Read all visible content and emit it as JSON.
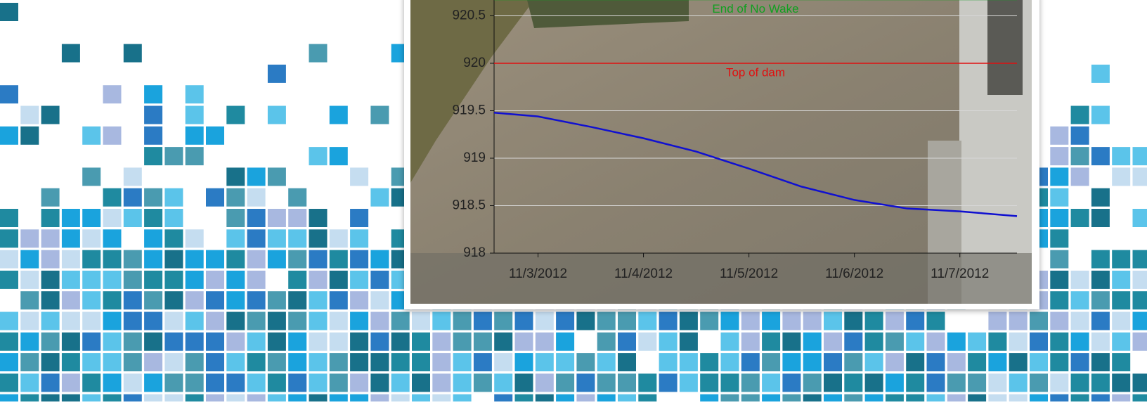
{
  "chart_data": {
    "type": "line",
    "x": [
      "2012-11-02T14:00",
      "2012-11-03T00:00",
      "2012-11-03T12:00",
      "2012-11-04T00:00",
      "2012-11-04T12:00",
      "2012-11-05T00:00",
      "2012-11-05T12:00",
      "2012-11-06T00:00",
      "2012-11-06T12:00",
      "2012-11-07T00:00",
      "2012-11-07T13:00"
    ],
    "series": [
      {
        "color": "#1010d0",
        "values": [
          919.48,
          919.44,
          919.33,
          919.21,
          919.07,
          918.89,
          918.7,
          918.56,
          918.47,
          918.44,
          918.39
        ]
      }
    ],
    "xlim": [
      "2012-11-02T14:00",
      "2012-11-07T13:00"
    ],
    "xticks": [
      {
        "value": "2012-11-03T00:00",
        "label": "11/3/2012"
      },
      {
        "value": "2012-11-04T00:00",
        "label": "11/4/2012"
      },
      {
        "value": "2012-11-05T00:00",
        "label": "11/5/2012"
      },
      {
        "value": "2012-11-06T00:00",
        "label": "11/6/2012"
      },
      {
        "value": "2012-11-07T00:00",
        "label": "11/7/2012"
      }
    ],
    "ylim": [
      918,
      920.7
    ],
    "yticks": [
      918,
      918.5,
      919,
      919.5,
      920,
      920.5
    ],
    "grid": true,
    "reference_lines": [
      {
        "text": "Top of dam",
        "value": 920,
        "color": "#e01010"
      },
      {
        "text": "End of No Wake",
        "value": 920.67,
        "color": "#10a020"
      }
    ]
  }
}
